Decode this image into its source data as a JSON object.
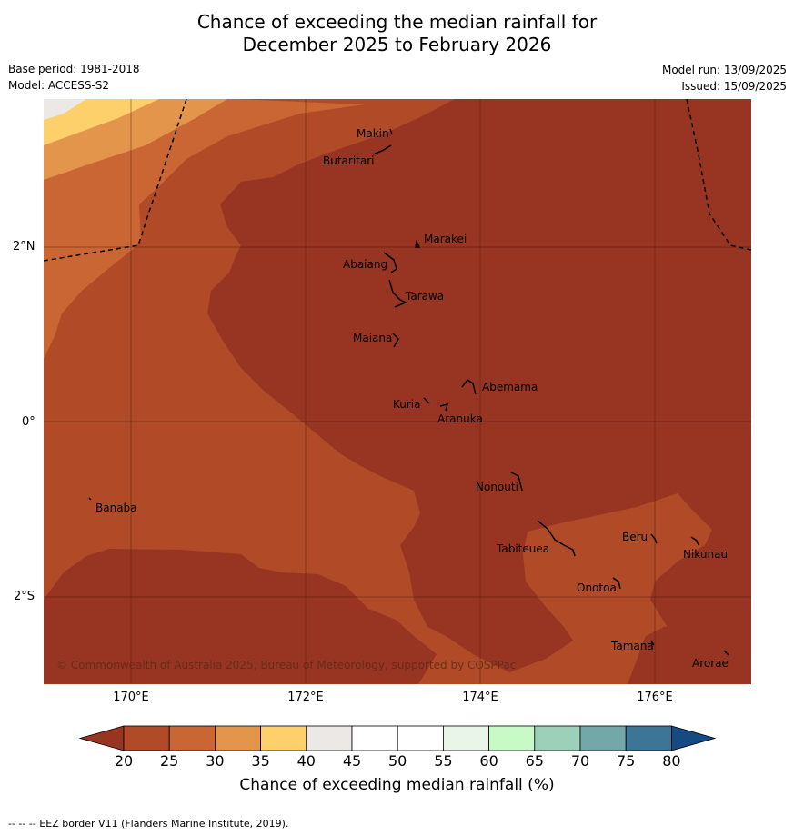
{
  "title_line1": "Chance of exceeding the median rainfall for",
  "title_line2": "December 2025 to February 2026",
  "meta": {
    "base_period": "Base period: 1981-2018",
    "model": "Model: ACCESS-S2",
    "model_run": "Model run: 13/09/2025",
    "issued": "Issued: 15/09/2025"
  },
  "lat_labels": [
    "2°N",
    "0°",
    "2°S"
  ],
  "lon_labels": [
    "170°E",
    "172°E",
    "174°E",
    "176°E"
  ],
  "islands": {
    "makin": "Makin",
    "butaritari": "Butaritari",
    "marakei": "Marakei",
    "abaiang": "Abaiang",
    "tarawa": "Tarawa",
    "maiana": "Maiana",
    "abemama": "Abemama",
    "kuria": "Kuria",
    "aranuka": "Aranuka",
    "nonouti": "Nonouti",
    "banaba": "Banaba",
    "beru": "Beru",
    "tabiteuea": "Tabiteuea",
    "nikunau": "Nikunau",
    "onotoa": "Onotoa",
    "tamana": "Tamana",
    "arorae": "Arorae"
  },
  "copyright": "© Commonwealth of Australia 2025, Bureau of Meteorology, supported by COSPPac",
  "colorbar": {
    "ticks": [
      "20",
      "25",
      "30",
      "35",
      "40",
      "45",
      "50",
      "55",
      "60",
      "65",
      "70",
      "75",
      "80"
    ],
    "colors": [
      "#983522",
      "#b04a27",
      "#c96633",
      "#e3954b",
      "#fdd06c",
      "#ebe8e5",
      "#ffffff",
      "#ffffff",
      "#e8f5e8",
      "#c8fac8",
      "#9dd0b8",
      "#73a8a8",
      "#3d7597",
      "#154b82"
    ],
    "label": "Chance of exceeding median rainfall (%)"
  },
  "footer": "--  --  -- EEZ border V11 (Flanders Marine Institute, 2019)."
}
